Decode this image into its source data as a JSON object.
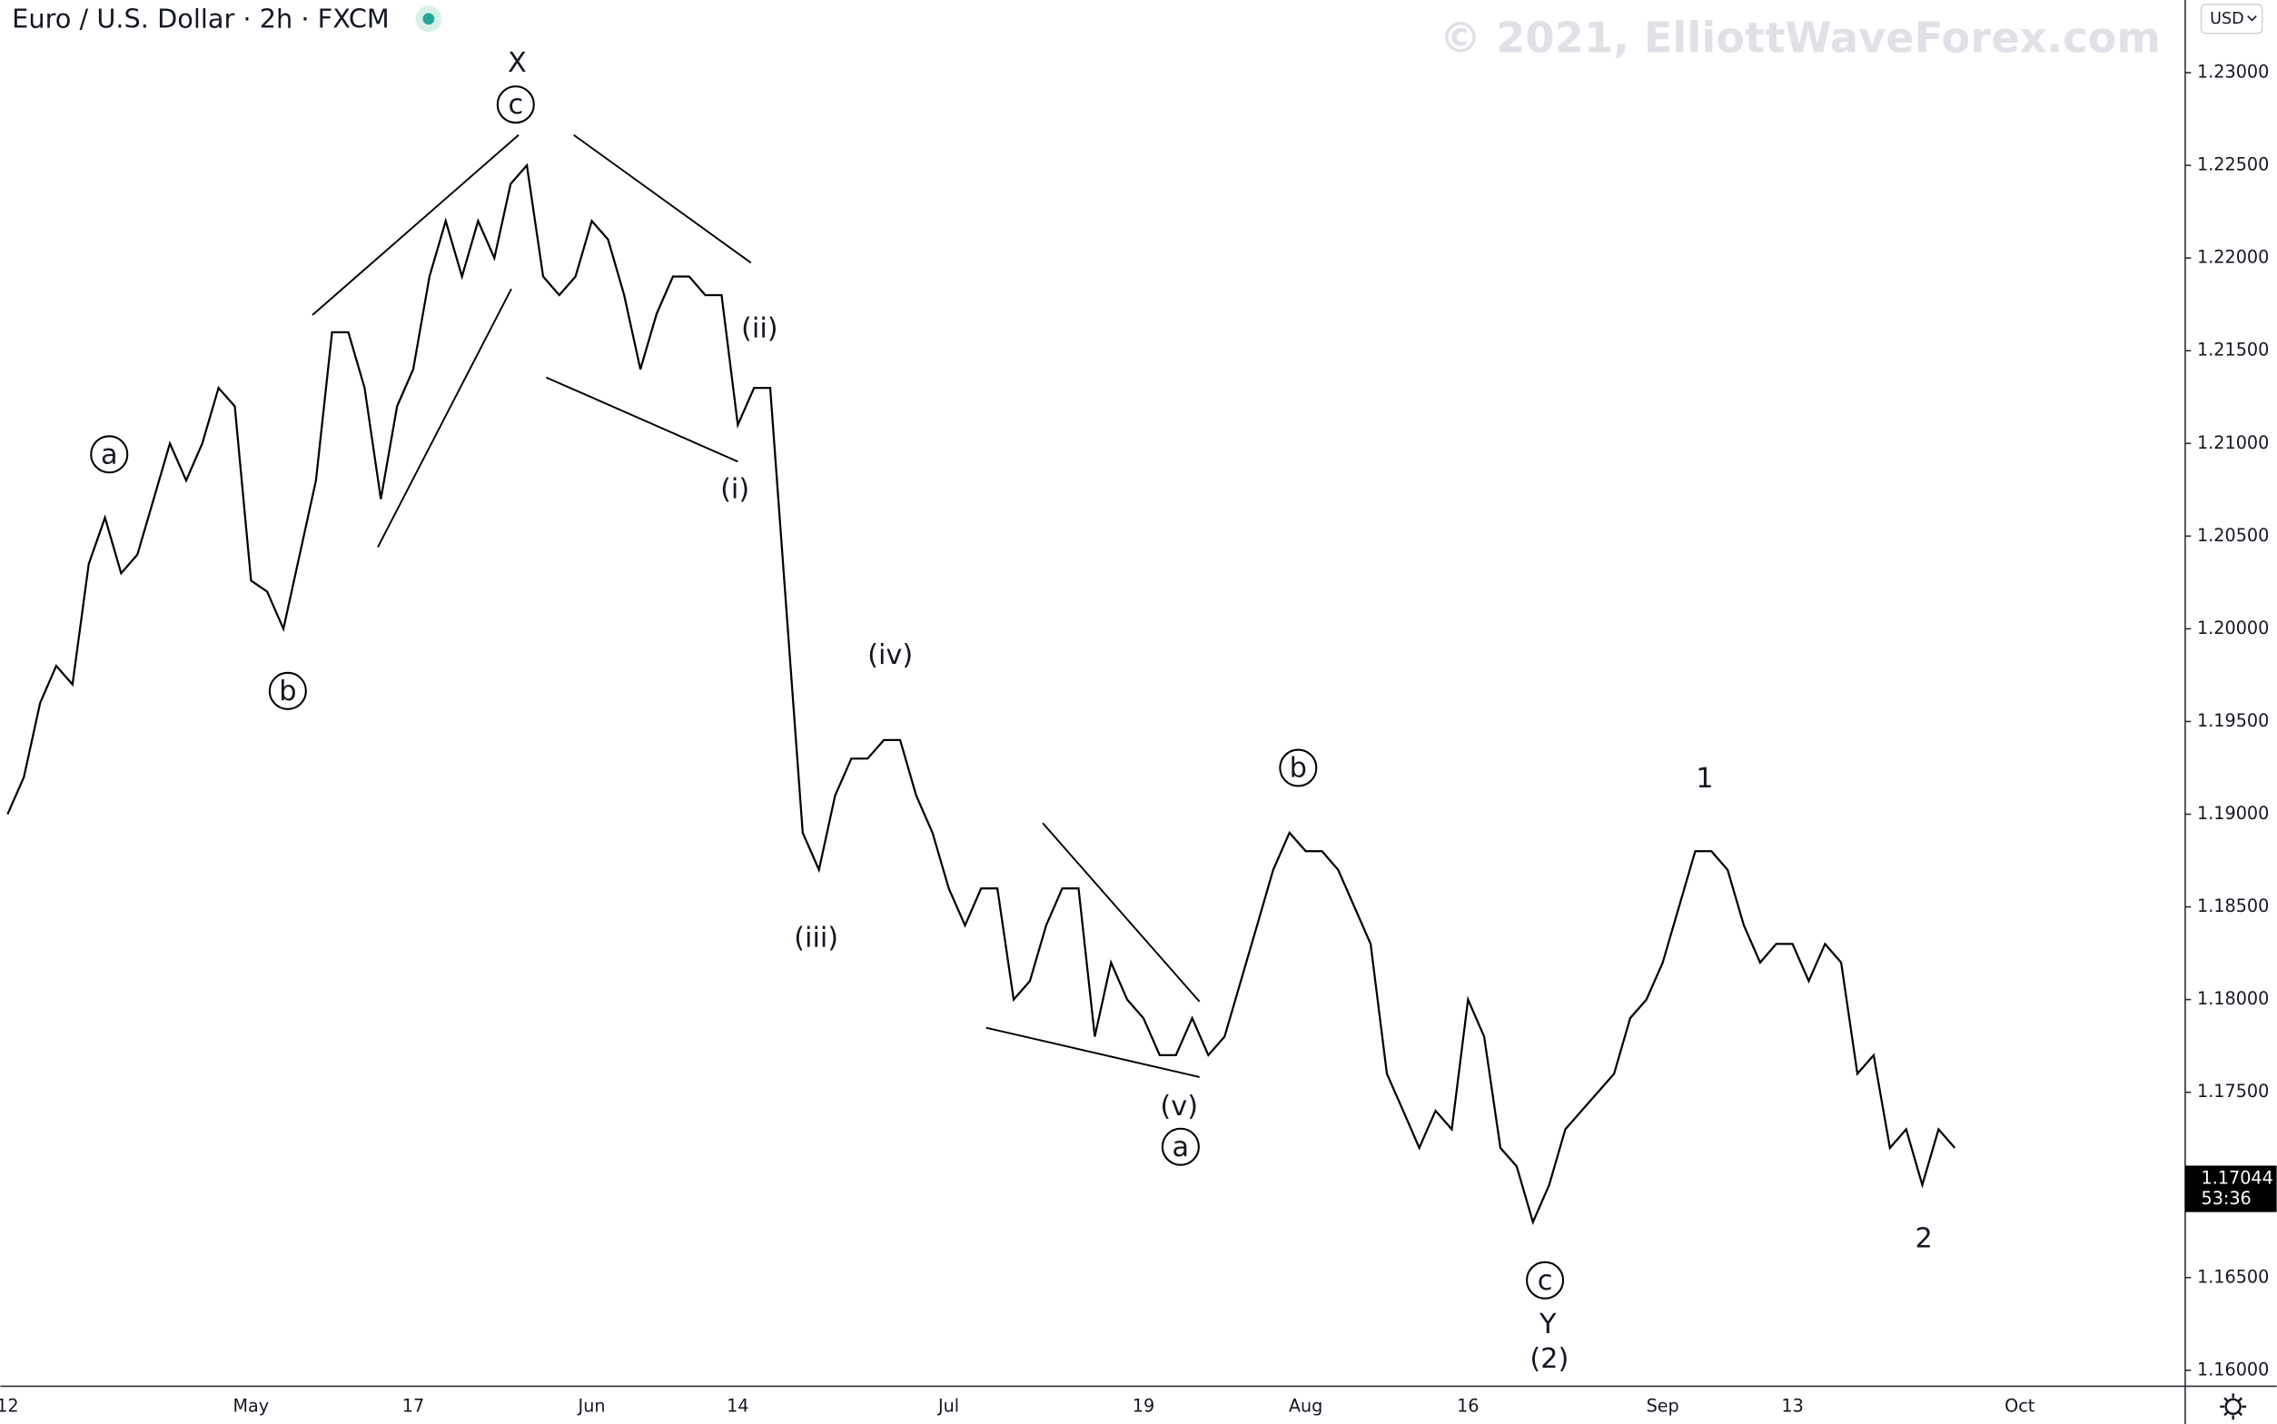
{
  "chart_data": {
    "type": "line",
    "title": "Euro / U.S. Dollar · 2h · FXCM",
    "watermark": "© 2021, ElliottWaveForex.com",
    "currency_button": "USD",
    "last_price_label": "1.17044",
    "countdown": "53:36",
    "color": "#000000",
    "categories": [
      "12",
      null,
      null,
      null,
      null,
      null,
      null,
      null,
      null,
      null,
      null,
      null,
      null,
      null,
      null,
      "May",
      null,
      null,
      null,
      null,
      null,
      null,
      null,
      null,
      null,
      "17",
      null,
      null,
      null,
      null,
      null,
      null,
      null,
      null,
      null,
      null,
      "Jun",
      null,
      null,
      null,
      null,
      null,
      null,
      null,
      null,
      "14",
      null,
      null,
      null,
      null,
      null,
      null,
      null,
      null,
      null,
      null,
      null,
      null,
      "Jul",
      null,
      null,
      null,
      null,
      null,
      null,
      null,
      null,
      null,
      null,
      null,
      "19",
      null,
      null,
      null,
      null,
      null,
      null,
      null,
      null,
      null,
      "Aug",
      null,
      null,
      null,
      null,
      null,
      null,
      null,
      null,
      null,
      "16",
      null,
      null,
      null,
      null,
      null,
      null,
      null,
      null,
      null,
      null,
      null,
      "Sep",
      null,
      null,
      null,
      null,
      null,
      null,
      null,
      "13",
      null,
      null,
      null,
      null,
      null,
      null,
      null,
      null,
      null,
      null,
      null,
      null,
      null,
      "Oct"
    ],
    "values": [
      1.19,
      1.192,
      1.196,
      1.198,
      1.197,
      1.2035,
      1.206,
      1.203,
      1.204,
      1.207,
      1.21,
      1.208,
      1.21,
      1.213,
      1.212,
      1.2026,
      1.202,
      1.2,
      1.204,
      1.208,
      1.216,
      1.216,
      1.213,
      1.207,
      1.212,
      1.214,
      1.219,
      1.222,
      1.219,
      1.222,
      1.22,
      1.224,
      1.225,
      1.219,
      1.218,
      1.219,
      1.222,
      1.221,
      1.218,
      1.214,
      1.217,
      1.219,
      1.219,
      1.218,
      1.218,
      1.211,
      1.213,
      1.213,
      1.201,
      1.189,
      1.187,
      1.191,
      1.193,
      1.193,
      1.194,
      1.194,
      1.191,
      1.189,
      1.186,
      1.184,
      1.186,
      1.186,
      1.18,
      1.181,
      1.184,
      1.186,
      1.186,
      1.178,
      1.182,
      1.18,
      1.179,
      1.177,
      1.177,
      1.179,
      1.177,
      1.178,
      1.181,
      1.184,
      1.187,
      1.189,
      1.188,
      1.188,
      1.187,
      1.185,
      1.183,
      1.176,
      1.174,
      1.172,
      1.174,
      1.173,
      1.18,
      1.178,
      1.172,
      1.171,
      1.168,
      1.17,
      1.173,
      1.174,
      1.175,
      1.176,
      1.179,
      1.18,
      1.182,
      1.185,
      1.188,
      1.188,
      1.187,
      1.184,
      1.182,
      1.183,
      1.183,
      1.181,
      1.183,
      1.182,
      1.176,
      1.177,
      1.172,
      1.173,
      1.17,
      1.173,
      1.172,
      null,
      null,
      null,
      null
    ],
    "ylim": [
      1.15914,
      1.23392
    ],
    "yticks": [
      {
        "value": 1.16,
        "label": "1.16000"
      },
      {
        "value": 1.165,
        "label": "1.16500"
      },
      {
        "value": 1.17,
        "label": "1.17000"
      },
      {
        "value": 1.175,
        "label": "1.17500"
      },
      {
        "value": 1.18,
        "label": "1.18000"
      },
      {
        "value": 1.185,
        "label": "1.18500"
      },
      {
        "value": 1.19,
        "label": "1.19000"
      },
      {
        "value": 1.195,
        "label": "1.19500"
      },
      {
        "value": 1.2,
        "label": "1.20000"
      },
      {
        "value": 1.205,
        "label": "1.20500"
      },
      {
        "value": 1.21,
        "label": "1.21000"
      },
      {
        "value": 1.215,
        "label": "1.21500"
      },
      {
        "value": 1.22,
        "label": "1.22000"
      },
      {
        "value": 1.225,
        "label": "1.22500"
      },
      {
        "value": 1.23,
        "label": "1.23000"
      }
    ],
    "grid": false,
    "annotations": [
      "X",
      "c",
      "a",
      "b",
      "(ii)",
      "(i)",
      "(iv)",
      "(iii)",
      "(v)",
      "a",
      "b",
      "c",
      "Y",
      "(2)",
      "1",
      "2"
    ]
  }
}
